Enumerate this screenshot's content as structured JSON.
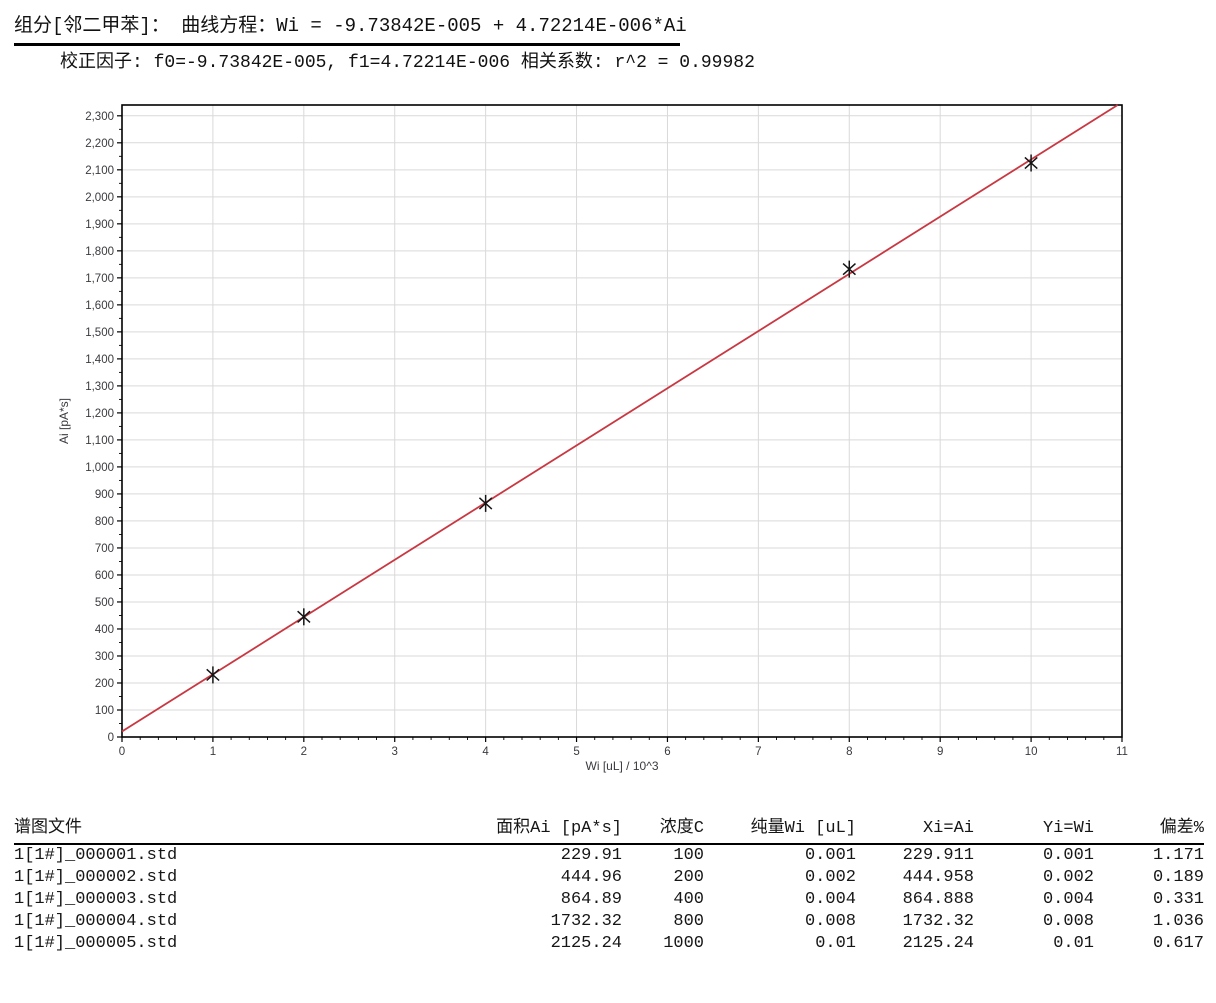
{
  "header": {
    "line1": "组分[邻二甲苯]：  曲线方程：Wi = -9.73842E-005 + 4.72214E-006*Ai",
    "line2": "校正因子: f0=-9.73842E-005, f1=4.72214E-006  相关系数: r^2 = 0.99982"
  },
  "chart_data": {
    "type": "scatter",
    "title": "",
    "xlabel": "Wi [uL] / 10^3",
    "ylabel": "Ai [pA*s]",
    "xlim": [
      0,
      11
    ],
    "ylim": [
      0,
      2340
    ],
    "x_major": 1,
    "x_minor": 0.2,
    "y_major": 100,
    "y_minor": 50,
    "y_label_max": 2300,
    "grid": true,
    "points": [
      {
        "x": 1,
        "y": 229.911
      },
      {
        "x": 2,
        "y": 444.958
      },
      {
        "x": 4,
        "y": 864.888
      },
      {
        "x": 8,
        "y": 1732.32
      },
      {
        "x": 10,
        "y": 2125.24
      }
    ],
    "fit_line": {
      "f0": -9.73842e-05,
      "f1": 4.72214e-06,
      "x_scale": 1000
    },
    "line_color": "#c93842",
    "grid_color": "#d9d9d9",
    "marker_color": "#141414",
    "frame_color": "#000000"
  },
  "table": {
    "headers": [
      "谱图文件",
      "面积Ai [pA*s]",
      "浓度C",
      "纯量Wi [uL]",
      "Xi=Ai",
      "Yi=Wi",
      "偏差%"
    ],
    "rows": [
      [
        "1[1#]_000001.std",
        "229.91",
        "100",
        "0.001",
        "229.911",
        "0.001",
        "1.171"
      ],
      [
        "1[1#]_000002.std",
        "444.96",
        "200",
        "0.002",
        "444.958",
        "0.002",
        "0.189"
      ],
      [
        "1[1#]_000003.std",
        "864.89",
        "400",
        "0.004",
        "864.888",
        "0.004",
        "0.331"
      ],
      [
        "1[1#]_000004.std",
        "1732.32",
        "800",
        "0.008",
        "1732.32",
        "0.008",
        "1.036"
      ],
      [
        "1[1#]_000005.std",
        "2125.24",
        "1000",
        "0.01",
        "2125.24",
        "0.01",
        "0.617"
      ]
    ]
  }
}
